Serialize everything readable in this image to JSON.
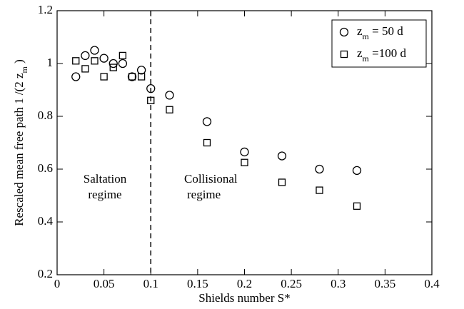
{
  "chart_data": {
    "type": "scatter",
    "xlabel": "Shields number S*",
    "ylabel": "Rescaled mean free path 1 /(2 z_m )",
    "xlim": [
      0,
      0.4
    ],
    "ylim": [
      0.2,
      1.2
    ],
    "xticks": [
      0,
      0.05,
      0.1,
      0.15,
      0.2,
      0.25,
      0.3,
      0.35,
      0.4
    ],
    "yticks": [
      0.2,
      0.4,
      0.6,
      0.8,
      1,
      1.2
    ],
    "vline": 0.1,
    "annotations": [
      [
        "Saltation",
        "regime"
      ],
      [
        "Collisional",
        "regime"
      ]
    ],
    "legend": "upper right",
    "series": [
      {
        "name": "z_m = 50 d",
        "marker": "circle",
        "color": "#000000",
        "x": [
          0.02,
          0.03,
          0.04,
          0.05,
          0.06,
          0.07,
          0.08,
          0.09,
          0.1,
          0.12,
          0.16,
          0.2,
          0.24,
          0.28,
          0.32
        ],
        "values": [
          0.95,
          1.03,
          1.05,
          1.02,
          1.0,
          1.0,
          0.95,
          0.975,
          0.905,
          0.88,
          0.78,
          0.665,
          0.65,
          0.6,
          0.595
        ]
      },
      {
        "name": "z_m =100 d",
        "marker": "square",
        "color": "#000000",
        "x": [
          0.02,
          0.03,
          0.04,
          0.05,
          0.06,
          0.07,
          0.08,
          0.09,
          0.1,
          0.12,
          0.16,
          0.2,
          0.24,
          0.28,
          0.32
        ],
        "values": [
          1.01,
          0.98,
          1.01,
          0.95,
          0.985,
          1.03,
          0.95,
          0.95,
          0.86,
          0.825,
          0.7,
          0.625,
          0.55,
          0.52,
          0.46
        ]
      }
    ]
  }
}
